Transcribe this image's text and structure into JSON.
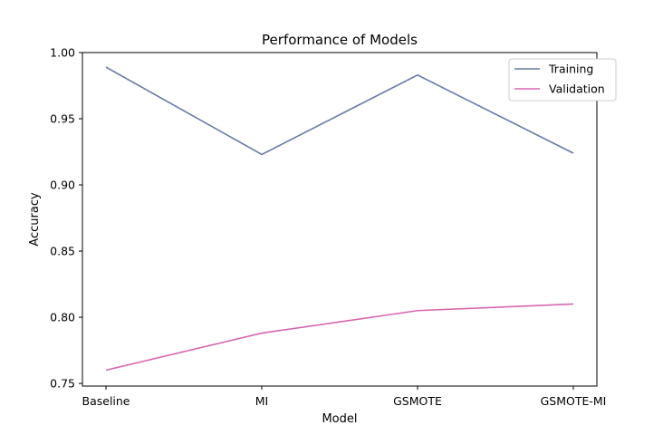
{
  "chart_data": {
    "type": "line",
    "title": "Performance of Models",
    "xlabel": "Model",
    "ylabel": "Accuracy",
    "categories": [
      "Baseline",
      "MI",
      "GSMOTE",
      "GSMOTE-MI"
    ],
    "ylim": [
      0.748,
      1.0
    ],
    "yticks": [
      0.75,
      0.8,
      0.85,
      0.9,
      0.95,
      1.0
    ],
    "ytick_labels": [
      "0.75",
      "0.80",
      "0.85",
      "0.90",
      "0.95",
      "1.00"
    ],
    "grid": false,
    "legend_position": "top-right",
    "series": [
      {
        "name": "Training",
        "color": "#6a7aa8",
        "values": [
          0.989,
          0.923,
          0.983,
          0.924
        ]
      },
      {
        "name": "Validation",
        "color": "#d767b0",
        "values": [
          0.76,
          0.788,
          0.805,
          0.81
        ]
      }
    ]
  }
}
